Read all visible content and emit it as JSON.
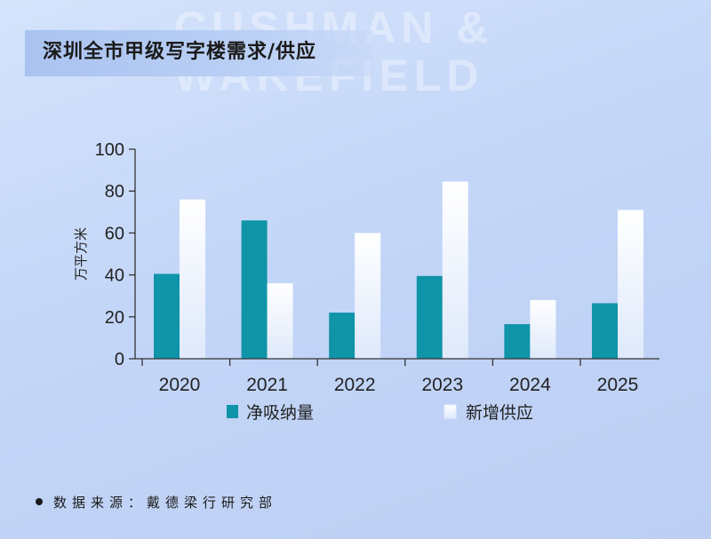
{
  "watermark": {
    "line1": "CUSHMAN &",
    "line2": "WAKEFIELD"
  },
  "title": "深圳全市甲级写字楼需求/供应",
  "source": "数据来源：戴德梁行研究部",
  "colors": {
    "absorption": "#0f94a8",
    "supply_top": "#ffffff",
    "supply_bottom": "#dfe9fb",
    "axis": "#333333"
  },
  "chart_data": {
    "type": "bar",
    "categories": [
      "2020",
      "2021",
      "2022",
      "2023",
      "2024",
      "2025"
    ],
    "series": [
      {
        "name": "净吸纳量",
        "values": [
          40.5,
          66,
          22,
          39.5,
          16.5,
          26.5
        ]
      },
      {
        "name": "新增供应",
        "values": [
          76,
          36,
          60,
          84.5,
          28,
          71
        ]
      }
    ],
    "ylabel": "万平方米",
    "ylim": [
      0,
      100
    ],
    "yticks": [
      0,
      20,
      40,
      60,
      80,
      100
    ],
    "legend_position": "bottom",
    "grid": false
  }
}
